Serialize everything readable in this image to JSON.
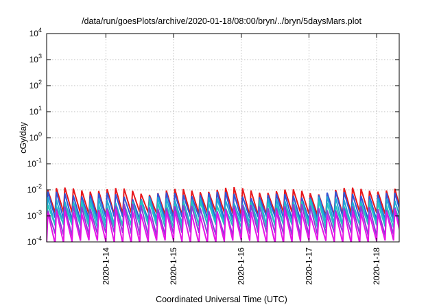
{
  "chart_data": {
    "type": "line",
    "title": "/data/run/goesPlots/archive/2020-01-18/08:00/bryn/../bryn/5daysMars.plot",
    "xlabel": "Coordinated Universal Time (UTC)",
    "ylabel": "cGy/day",
    "y_scale": "log",
    "ylim": [
      0.0001,
      10000
    ],
    "y_ticks": [
      {
        "value": 0.0001,
        "base": "10",
        "exp": "-4"
      },
      {
        "value": 0.001,
        "base": "10",
        "exp": "-3"
      },
      {
        "value": 0.01,
        "base": "10",
        "exp": "-2"
      },
      {
        "value": 0.1,
        "base": "10",
        "exp": "-1"
      },
      {
        "value": 1,
        "base": "10",
        "exp": "0"
      },
      {
        "value": 10,
        "base": "10",
        "exp": "1"
      },
      {
        "value": 100,
        "base": "10",
        "exp": "2"
      },
      {
        "value": 1000,
        "base": "10",
        "exp": "3"
      },
      {
        "value": 10000,
        "base": "10",
        "exp": "4"
      }
    ],
    "xlim": [
      "2020-01-13T03:00",
      "2020-01-18T08:00"
    ],
    "x_ticks": [
      "2020-1-14",
      "2020-1-15",
      "2020-1-16",
      "2020-1-17",
      "2020-1-18"
    ],
    "grid": true,
    "legend": "none",
    "cycle_hours": 3,
    "series": [
      {
        "color": "#e8161b",
        "high": 0.0095,
        "low": 0.0012
      },
      {
        "color": "#2f57d9",
        "high": 0.0065,
        "low": 0.0008
      },
      {
        "color": "#1fa9d6",
        "high": 0.0042,
        "low": 0.0005
      },
      {
        "color": "#23c4c0",
        "high": 0.003,
        "low": 0.0004
      },
      {
        "color": "#8a3fd6",
        "high": 0.0022,
        "low": 0.0002
      },
      {
        "color": "#e614e6",
        "high": 0.0014,
        "low": 0.0001
      }
    ]
  }
}
